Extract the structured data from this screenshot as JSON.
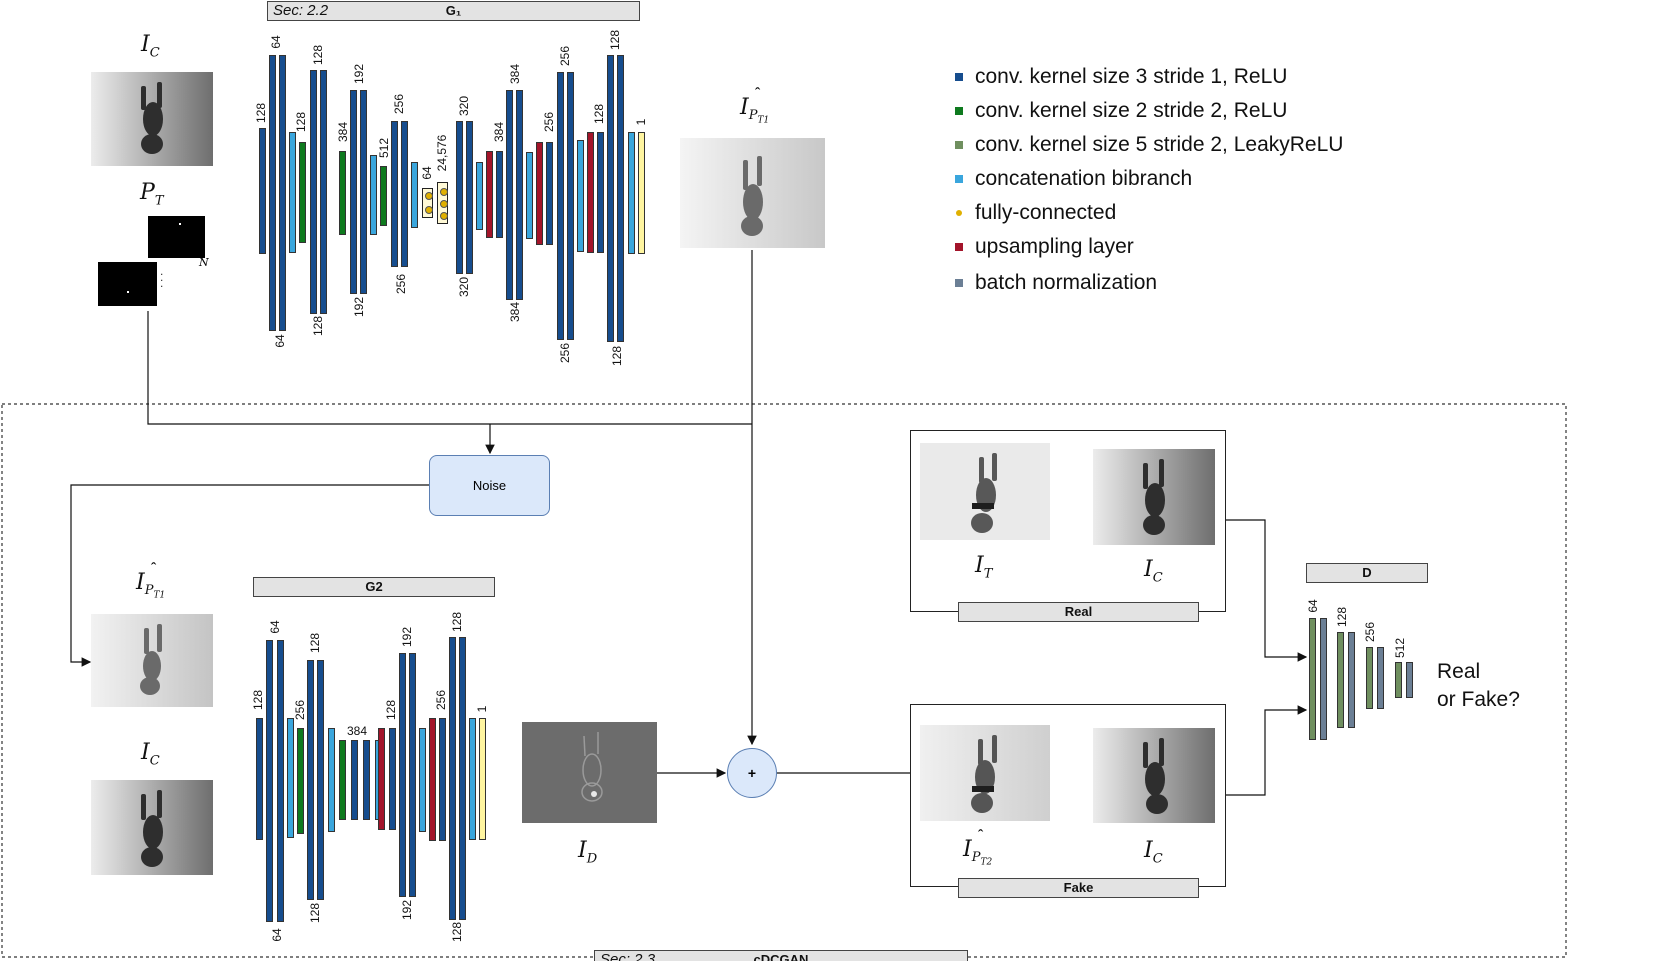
{
  "g1": {
    "sec": "Sec: 2.2",
    "title": "G₁"
  },
  "g2": {
    "title": "G2"
  },
  "d": {
    "title": "D"
  },
  "cdcgan": {
    "sec": "Sec: 2.3",
    "title": "cDCGAN"
  },
  "noise": "Noise",
  "plus": "+",
  "real_label": "Real",
  "fake_label": "Fake",
  "real_or_fake": [
    "Real",
    "or Fake?"
  ],
  "pt_n": "N",
  "math": {
    "ic_base": "I",
    "ic_sub": "C",
    "pt_base": "P",
    "pt_sub": "T",
    "it_base": "I",
    "it_sub": "T",
    "id_base": "I",
    "id_sub": "D",
    "ipt1_base": "I",
    "ipt1_sub": "P",
    "ipt1_subsub": "T1",
    "ipt2_base": "I",
    "ipt2_sub": "P",
    "ipt2_subsub": "T2",
    "hat": "ˆ"
  },
  "legend": [
    {
      "label": "conv. kernel size 3 stride 1, ReLU",
      "color": "#164d8e",
      "marker": "square"
    },
    {
      "label": "conv. kernel size 2 stride 2, ReLU",
      "color": "#0e7a1e",
      "marker": "square"
    },
    {
      "label": "conv. kernel size 5 stride 2, LeakyReLU",
      "color": "#6f8f5f",
      "marker": "square"
    },
    {
      "label": "concatenation bibranch",
      "color": "#3aa6dd",
      "marker": "square"
    },
    {
      "label": "fully-connected",
      "color": "#e0b000",
      "marker": "dot"
    },
    {
      "label": "upsampling layer",
      "color": "#a3142a",
      "marker": "square"
    },
    {
      "label": "batch normalization",
      "color": "#6b7f95",
      "marker": "square"
    }
  ],
  "colors": {
    "conv": "#164d8e",
    "down": "#0e7a1e",
    "leaky": "#6f8f5f",
    "concat": "#3aa6dd",
    "fc": "#e0b000",
    "up": "#a3142a",
    "bn": "#6b7f95",
    "output": "#fff5a0",
    "noise_fill": "#dbe8fa",
    "plus_fill": "#dbe8fa"
  },
  "layer_labels": {
    "g1": [
      "128",
      "64",
      "128",
      "192",
      "256",
      "256",
      "384",
      "512",
      "64",
      "24,576",
      "320",
      "384",
      "384",
      "256",
      "256",
      "128",
      "128",
      "1",
      "64",
      "128",
      "192",
      "256",
      "320",
      "384",
      "256",
      "128"
    ],
    "g2": [
      "128",
      "64",
      "256",
      "128",
      "384",
      "128",
      "192",
      "256",
      "128",
      "1",
      "64",
      "128",
      "192",
      "128"
    ],
    "d": [
      "64",
      "128",
      "256",
      "512"
    ]
  }
}
